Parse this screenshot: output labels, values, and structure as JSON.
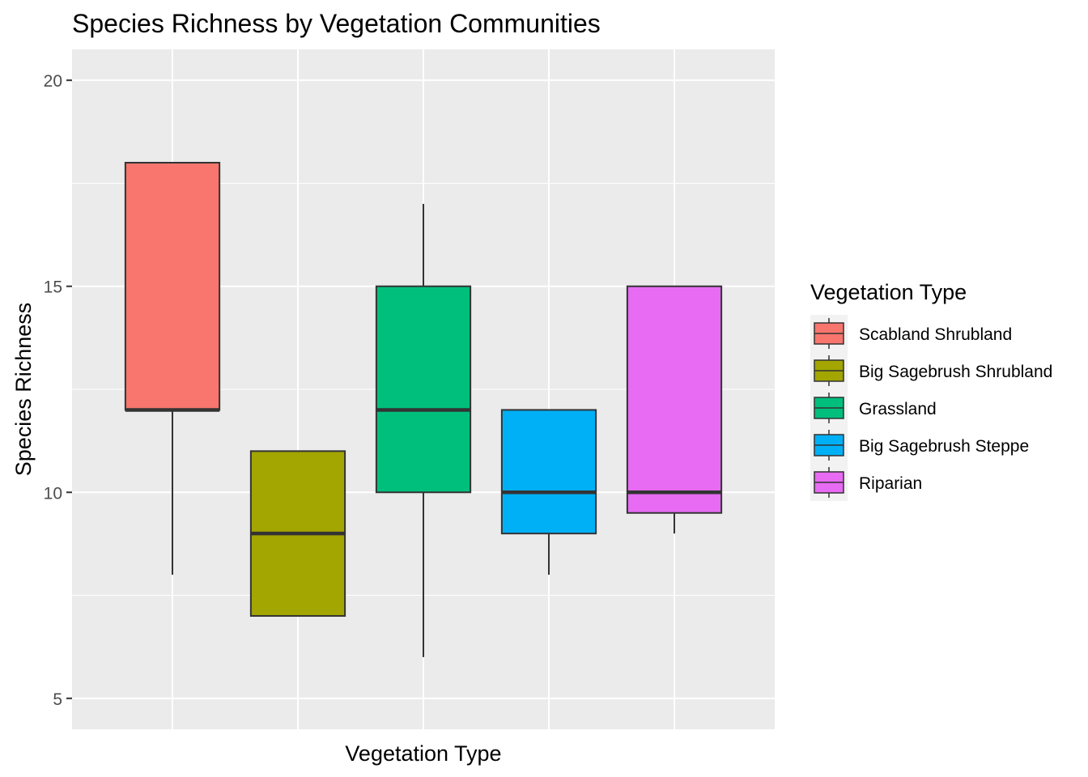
{
  "chart_data": {
    "type": "boxplot",
    "title": "Species Richness by Vegetation Communities",
    "xlabel": "Vegetation Type",
    "ylabel": "Species Richness",
    "ylim": [
      4.25,
      20.75
    ],
    "yticks": [
      5,
      10,
      15,
      20
    ],
    "grid": true,
    "legend": {
      "title": "Vegetation Type",
      "placement": "right"
    },
    "series": [
      {
        "name": "Scabland Shrubland",
        "color": "#F8766D",
        "min": 8,
        "q1": 12,
        "median": 12,
        "q3": 18,
        "max": 18
      },
      {
        "name": "Big Sagebrush Shrubland",
        "color": "#A3A500",
        "min": 7,
        "q1": 7,
        "median": 9,
        "q3": 11,
        "max": 11
      },
      {
        "name": "Grassland",
        "color": "#00BF7D",
        "min": 6,
        "q1": 10,
        "median": 12,
        "q3": 15,
        "max": 17
      },
      {
        "name": "Big Sagebrush Steppe",
        "color": "#00B0F6",
        "min": 8,
        "q1": 9,
        "median": 10,
        "q3": 12,
        "max": 12
      },
      {
        "name": "Riparian",
        "color": "#E76BF3",
        "min": 9,
        "q1": 9.5,
        "median": 10,
        "q3": 15,
        "max": 15
      }
    ]
  }
}
